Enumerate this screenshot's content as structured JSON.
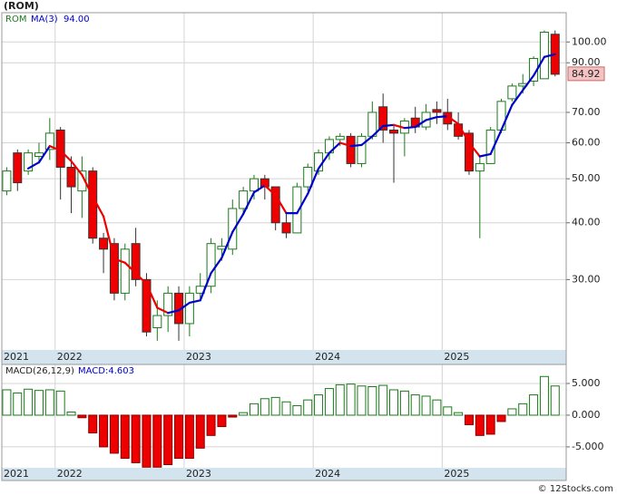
{
  "title": "(ROM)",
  "footer": "© 12Stocks.com",
  "chart_data": [
    {
      "type": "candlestick",
      "symbol": "ROM",
      "categories": [
        "2021",
        null,
        null,
        null,
        null,
        "2022",
        null,
        null,
        null,
        null,
        null,
        null,
        null,
        null,
        null,
        null,
        null,
        "2023",
        null,
        null,
        null,
        null,
        null,
        null,
        null,
        null,
        null,
        null,
        null,
        "2024",
        null,
        null,
        null,
        null,
        null,
        null,
        null,
        null,
        null,
        null,
        null,
        "2025",
        null,
        null,
        null,
        null,
        null,
        null,
        null,
        null,
        null,
        null
      ],
      "open": [
        47,
        57,
        52,
        56,
        58,
        64,
        53,
        47,
        52,
        37,
        36,
        28,
        36,
        30,
        23.5,
        25,
        28,
        24,
        28,
        29,
        35,
        35,
        43,
        47,
        50,
        48,
        40,
        38,
        48,
        52,
        57,
        61,
        62,
        54,
        62,
        72,
        64,
        63,
        68,
        65,
        71,
        70,
        66,
        63,
        52,
        54,
        64,
        75,
        80,
        82,
        83,
        104
      ],
      "high": [
        53,
        58,
        58,
        60,
        68,
        65,
        56,
        56,
        53,
        38,
        37,
        36,
        39,
        31,
        27,
        29,
        29,
        29,
        31,
        37,
        37,
        45,
        48,
        51,
        51,
        48,
        42,
        49,
        54,
        58,
        62,
        63,
        63,
        63,
        74,
        77,
        66,
        68,
        72,
        73,
        74,
        75,
        70,
        64,
        56,
        65,
        75,
        81,
        85,
        93,
        106,
        106
      ],
      "low": [
        46,
        47,
        51,
        54,
        55,
        45,
        42,
        41,
        36,
        31,
        27,
        27,
        29,
        22.5,
        22,
        23,
        22,
        22.5,
        27,
        28,
        33,
        34,
        42,
        45,
        45,
        38.5,
        37,
        38,
        47,
        51,
        55,
        59,
        53,
        53,
        61,
        60,
        49,
        56,
        63,
        64,
        66,
        64,
        61,
        51,
        37,
        54,
        63,
        74,
        77,
        80,
        83,
        84
      ],
      "close": [
        52,
        49,
        57,
        57,
        63,
        53,
        48,
        52,
        37,
        35,
        28,
        35,
        30,
        23,
        25,
        28,
        24,
        28,
        29,
        36,
        35.5,
        43,
        47,
        50,
        48,
        40,
        38,
        48,
        53,
        57,
        61,
        62,
        54,
        62,
        70,
        64,
        63,
        67,
        65,
        70,
        70,
        66,
        62,
        52,
        54,
        64,
        74,
        80,
        81,
        92,
        105.08,
        84.92
      ],
      "up_color": "#1a7a1a",
      "down_color": "#ee0000",
      "last_price": 84.92,
      "overlay": {
        "name": "MA(3)",
        "value_label": "94.00",
        "rising_color": "#0000cc",
        "falling_color": "#ee0000",
        "values": [
          null,
          null,
          52.67,
          54.33,
          59,
          57.67,
          54.67,
          51,
          45.67,
          41.33,
          33.33,
          32.67,
          31,
          29.33,
          26,
          25.33,
          25.67,
          26.67,
          27,
          31,
          33.5,
          38.17,
          41.83,
          46.67,
          48.33,
          46,
          42,
          42,
          46.33,
          52.67,
          57,
          60,
          59,
          59.33,
          62,
          65.33,
          65.67,
          64.67,
          65,
          67.33,
          68.33,
          68.67,
          66,
          60,
          56,
          56.67,
          64,
          72.67,
          78.33,
          84.33,
          92.69,
          94
        ]
      },
      "log_scale": true,
      "ylim": [
        21,
        116
      ],
      "yticks": [
        {
          "value": 30,
          "label": "30.00"
        },
        {
          "value": 40,
          "label": "40.00"
        },
        {
          "value": 50,
          "label": "50.00"
        },
        {
          "value": 60,
          "label": "60.00"
        },
        {
          "value": 70,
          "label": "70.00"
        },
        {
          "value": 90,
          "label": "90.00"
        },
        {
          "value": 100,
          "label": "100.00"
        }
      ],
      "grid": true
    },
    {
      "type": "bar",
      "name": "MACD(26,12,9)",
      "value_label": "MACD:4.603",
      "categories": [
        "2021",
        null,
        null,
        null,
        null,
        "2022",
        null,
        null,
        null,
        null,
        null,
        null,
        null,
        null,
        null,
        null,
        null,
        "2023",
        null,
        null,
        null,
        null,
        null,
        null,
        null,
        null,
        null,
        null,
        null,
        "2024",
        null,
        null,
        null,
        null,
        null,
        null,
        null,
        null,
        null,
        null,
        null,
        "2025",
        null,
        null,
        null,
        null,
        null,
        null,
        null,
        null,
        null,
        null
      ],
      "values": [
        4.0,
        3.5,
        4.1,
        3.9,
        4.0,
        3.8,
        0.5,
        -0.4,
        -2.8,
        -5.0,
        -6.0,
        -6.8,
        -7.5,
        -8.2,
        -8.2,
        -7.8,
        -6.8,
        -6.8,
        -5.2,
        -3.2,
        -1.8,
        -0.3,
        0.4,
        1.8,
        2.6,
        2.8,
        2.1,
        1.5,
        2.4,
        3.2,
        4.2,
        4.8,
        4.9,
        4.6,
        4.5,
        4.7,
        4.0,
        3.8,
        3.2,
        3.0,
        2.4,
        1.3,
        0.4,
        -1.5,
        -3.2,
        -3.0,
        -1.0,
        1.0,
        1.8,
        3.2,
        6.1,
        4.603
      ],
      "up_color": "#1a7a1a",
      "down_color": "#ee0000",
      "ylim": [
        -8.3,
        8
      ],
      "yticks": [
        {
          "value": -5,
          "label": "-5.000"
        },
        {
          "value": 0,
          "label": "0.000"
        },
        {
          "value": 5,
          "label": "5.000"
        }
      ],
      "grid": true
    }
  ]
}
